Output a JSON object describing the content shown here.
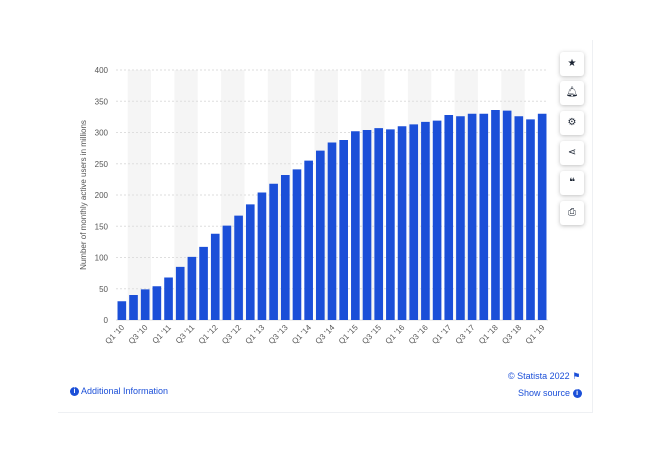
{
  "chart_data": {
    "type": "bar",
    "ylabel": "Number of monthly active users in millions",
    "xlabel": "",
    "ylim": [
      0,
      400
    ],
    "yticks": [
      0,
      50,
      100,
      150,
      200,
      250,
      300,
      350,
      400
    ],
    "grid": true,
    "bar_color": "#1b4fd8",
    "categories": [
      "Q1 '10",
      "Q2 '10",
      "Q3 '10",
      "Q4 '10",
      "Q1 '11",
      "Q2 '11",
      "Q3 '11",
      "Q4 '11",
      "Q1 '12",
      "Q2 '12",
      "Q3 '12",
      "Q4 '12",
      "Q1 '13",
      "Q2 '13",
      "Q3 '13",
      "Q4 '13",
      "Q1 '14",
      "Q2 '14",
      "Q3 '14",
      "Q4 '14",
      "Q1 '15",
      "Q2 '15",
      "Q3 '15",
      "Q4 '15",
      "Q1 '16",
      "Q2 '16",
      "Q3 '16",
      "Q4 '16",
      "Q1 '17",
      "Q2 '17",
      "Q3 '17",
      "Q4 '17",
      "Q1 '18",
      "Q2 '18",
      "Q3 '18",
      "Q4 '18",
      "Q1 '19"
    ],
    "tick_labels": [
      "Q1 '10",
      "Q3 '10",
      "Q1 '11",
      "Q3 '11",
      "Q1 '12",
      "Q3 '12",
      "Q1 '13",
      "Q3 '13",
      "Q1 '14",
      "Q3 '14",
      "Q1 '15",
      "Q3 '15",
      "Q1 '16",
      "Q3 '16",
      "Q1 '17",
      "Q3 '17",
      "Q1 '18",
      "Q3 '18",
      "Q1 '19"
    ],
    "values": [
      30,
      40,
      49,
      54,
      68,
      85,
      101,
      117,
      138,
      151,
      167,
      185,
      204,
      218,
      232,
      241,
      255,
      271,
      284,
      288,
      302,
      304,
      307,
      305,
      310,
      313,
      317,
      319,
      328,
      326,
      330,
      330,
      336,
      335,
      326,
      321,
      330
    ]
  },
  "toolbar": {
    "icons": [
      "star-icon",
      "bell-icon",
      "gear-icon",
      "share-icon",
      "quote-icon",
      "print-icon"
    ]
  },
  "footer": {
    "copyright": "© Statista 2022",
    "additional_info": "Additional Information",
    "show_source": "Show source"
  }
}
